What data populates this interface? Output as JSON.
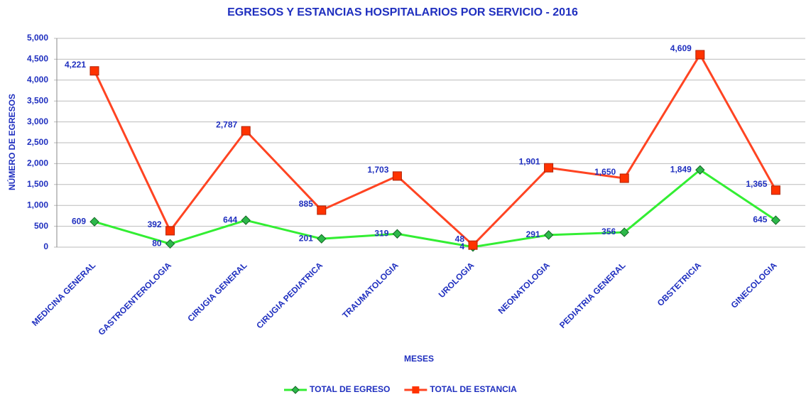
{
  "chart_data": {
    "type": "line",
    "title": "EGRESOS Y ESTANCIAS HOSPITALARIOS POR SERVICIO - 2016",
    "x_label": "MESES",
    "y_label": "NÚMERO DE EGRESOS",
    "categories": [
      "MEDICINA GENERAL",
      "GASTROENTEROLOGIA",
      "CIRUGIA GENERAL",
      "CIRUGIA PEDIATRICA",
      "TRAUMATOLOGIA",
      "UROLOGIA",
      "NEONATOLOGIA",
      "PEDIATRIA GENERAL",
      "OBSTETRICIA",
      "GINECOLOGIA"
    ],
    "series": [
      {
        "name": "TOTAL DE EGRESO",
        "color": "#33ee33",
        "marker_color": "#2db84a",
        "marker": "diamond",
        "values": [
          609,
          80,
          644,
          201,
          319,
          4,
          291,
          356,
          1849,
          645
        ],
        "value_labels": [
          "609",
          "80",
          "644",
          "201",
          "319",
          "4",
          "291",
          "356",
          "1,849",
          "645"
        ]
      },
      {
        "name": "TOTAL DE ESTANCIA",
        "color": "#ff4422",
        "marker_color": "#ff3300",
        "marker": "square",
        "values": [
          4221,
          392,
          2787,
          885,
          1703,
          48,
          1901,
          1650,
          4609,
          1365
        ],
        "value_labels": [
          "4,221",
          "392",
          "2,787",
          "885",
          "1,703",
          "48",
          "1,901",
          "1,650",
          "4,609",
          "1,365"
        ]
      }
    ],
    "ylim": [
      0,
      5000
    ],
    "yticks": [
      0,
      500,
      {
        "value": 1000,
        "label": "1,000"
      },
      {
        "value": 1500,
        "label": "1,500"
      },
      {
        "value": 2000,
        "label": "2,000"
      },
      {
        "value": 2500,
        "label": "2,500"
      },
      {
        "value": 3000,
        "label": "3,000"
      },
      {
        "value": 3500,
        "label": "3,500"
      },
      {
        "value": 4000,
        "label": "4,000"
      },
      {
        "value": 4500,
        "label": "4,500"
      },
      {
        "value": 5000,
        "label": "5,000"
      }
    ],
    "grid": true,
    "legend": "bottom"
  }
}
